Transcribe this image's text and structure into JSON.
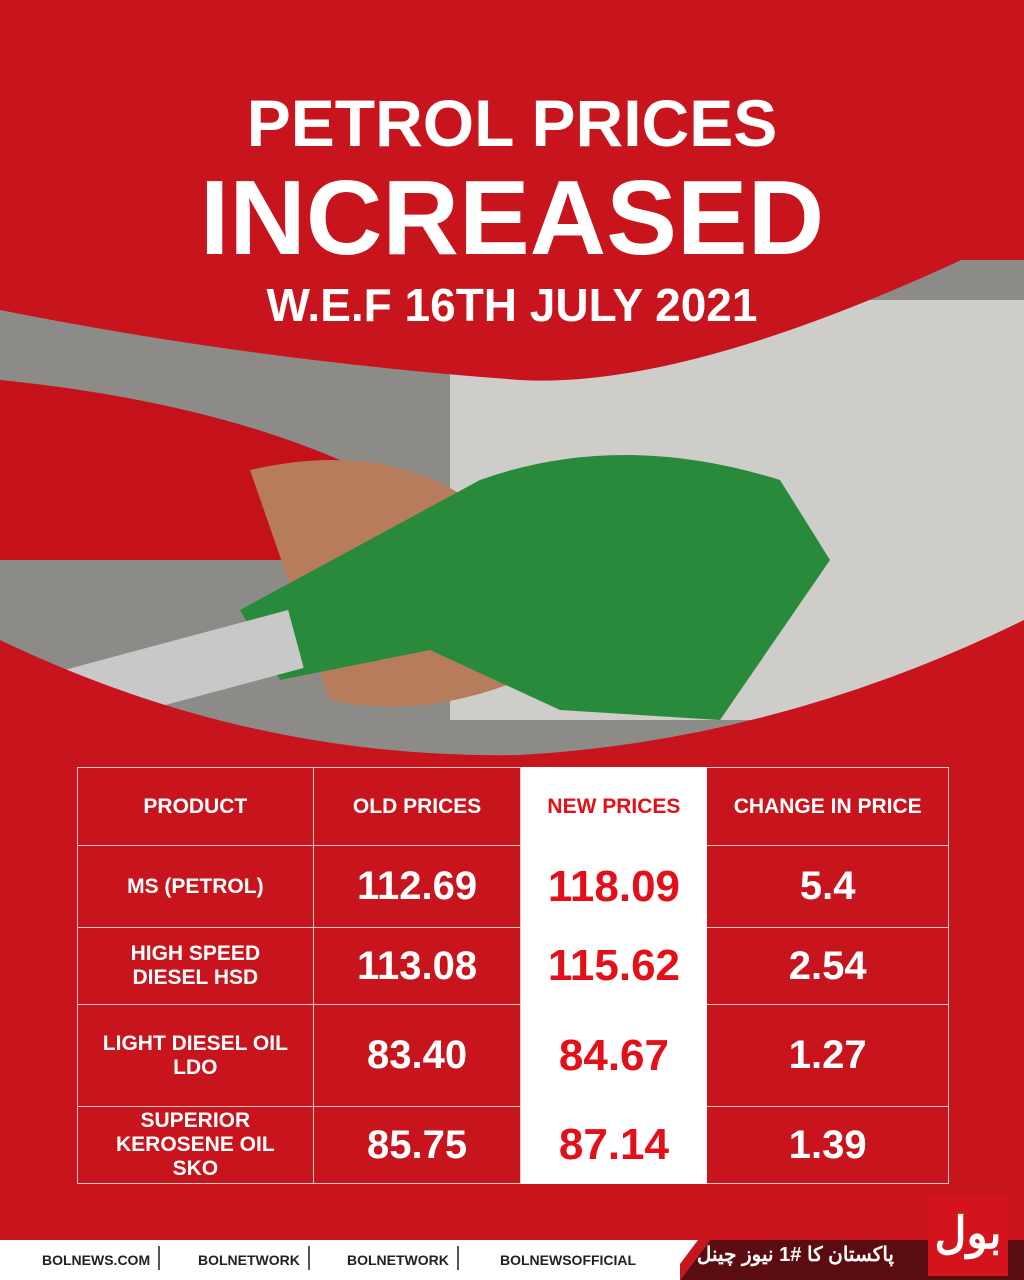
{
  "header": {
    "title_line1": "PETROL PRICES",
    "title_line2": "INCREASED",
    "subtitle": "W.E.F 16TH JULY 2021"
  },
  "table": {
    "headers": [
      "PRODUCT",
      "OLD PRICES",
      "NEW PRICES",
      "CHANGE IN PRICE"
    ],
    "rows": [
      [
        "MS (PETROL)",
        "112.69",
        "118.09",
        "5.4"
      ],
      [
        "HIGH SPEED DIESEL HSD",
        "113.08",
        "115.62",
        "2.54"
      ],
      [
        "LIGHT DIESEL OIL LDO",
        "83.40",
        "84.67",
        "1.27"
      ],
      [
        "SUPERIOR KEROSENE OIL SKO",
        "85.75",
        "87.14",
        "1.39"
      ]
    ]
  },
  "footer": {
    "links": [
      "BOLNEWS.COM",
      "BOLNETWORK",
      "BOLNETWORK",
      "BOLNEWSOFFICIAL"
    ],
    "tagline": "پاکستان کا #1 نیوز چینل",
    "logo": "بول"
  }
}
